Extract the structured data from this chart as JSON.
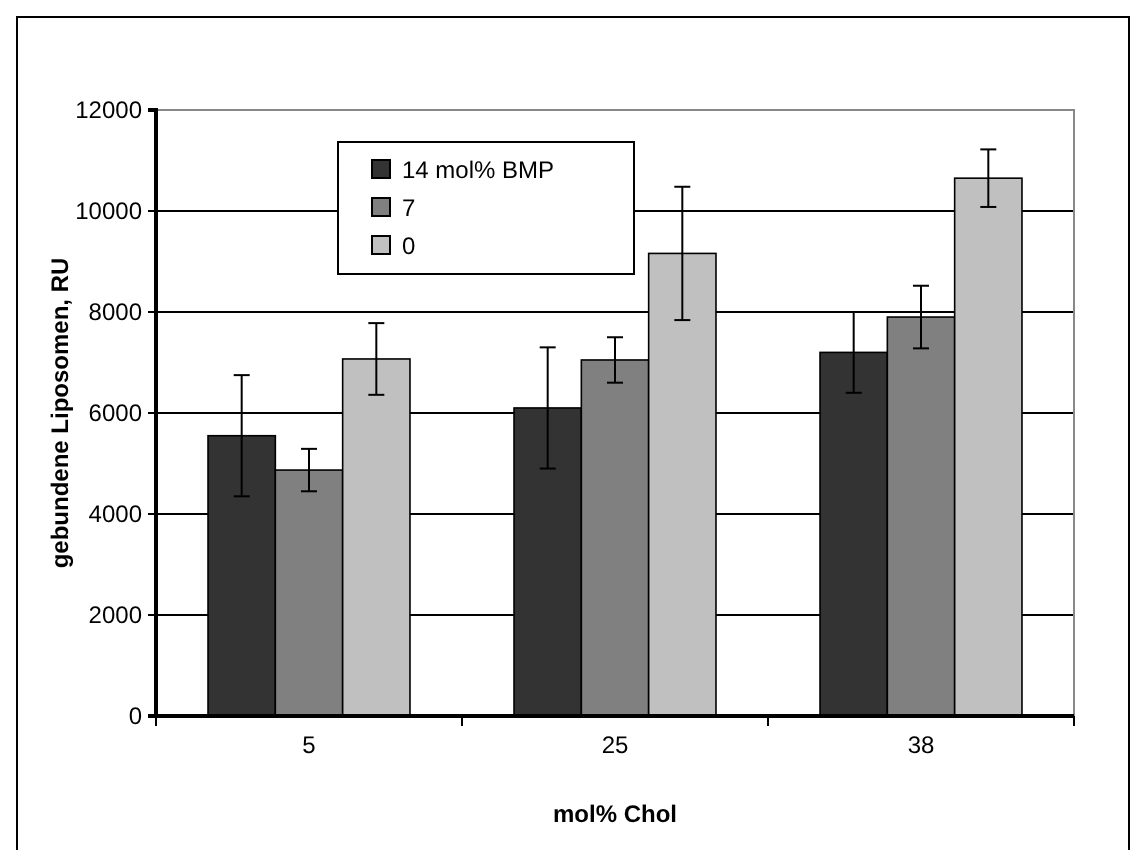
{
  "chart_data": {
    "type": "bar",
    "xlabel": "mol% Chol",
    "ylabel": "gebundene Liposomen, RU",
    "categories": [
      "5",
      "25",
      "38"
    ],
    "series": [
      {
        "name": "14 mol% BMP",
        "color": "#333333",
        "values": [
          5550,
          6100,
          7200
        ],
        "errors": [
          1200,
          1200,
          800
        ]
      },
      {
        "name": "7",
        "color": "#808080",
        "values": [
          4870,
          7050,
          7900
        ],
        "errors": [
          420,
          450,
          620
        ]
      },
      {
        "name": "0",
        "color": "#c0c0c0",
        "values": [
          7070,
          9160,
          10650
        ],
        "errors": [
          710,
          1320,
          570
        ]
      }
    ],
    "ylim": [
      0,
      12000
    ],
    "yticks": [
      0,
      2000,
      4000,
      6000,
      8000,
      10000,
      12000
    ],
    "grid": "y",
    "legend": "top left"
  }
}
